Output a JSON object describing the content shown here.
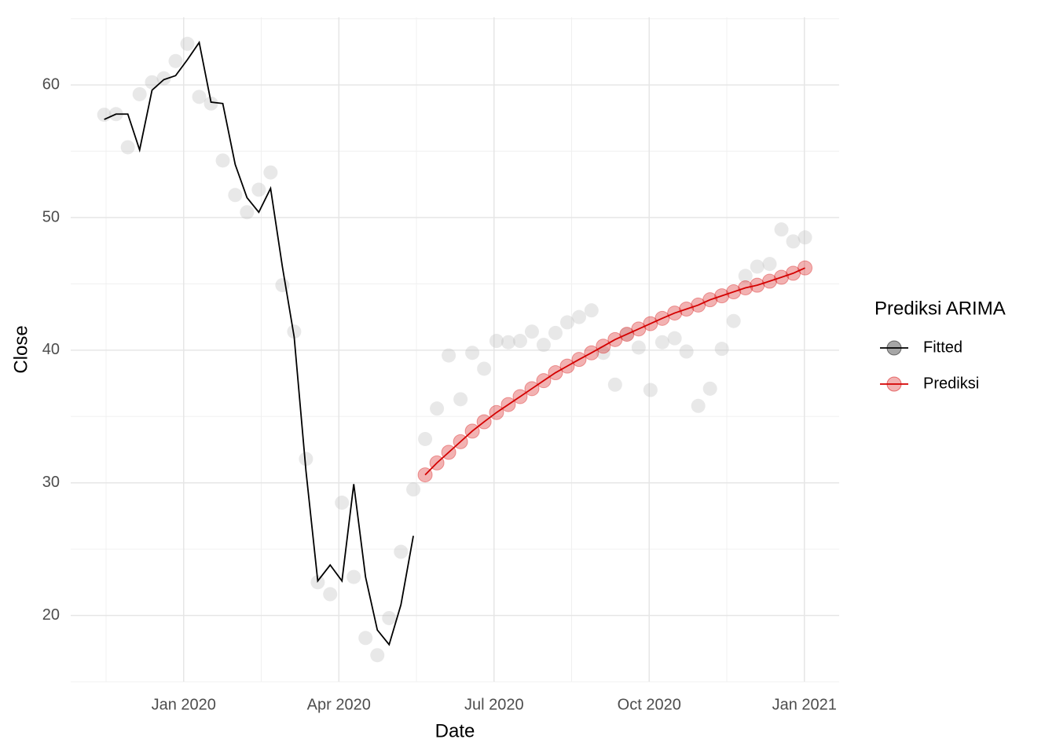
{
  "chart_data": {
    "type": "line",
    "x_label": "Date",
    "y_label": "Close",
    "legend_title": "Prediksi ARIMA",
    "x": [
      2019.872,
      2019.891,
      2019.91,
      2019.929,
      2019.949,
      2019.968,
      2019.987,
      2020.006,
      2020.025,
      2020.044,
      2020.063,
      2020.083,
      2020.102,
      2020.121,
      2020.14,
      2020.159,
      2020.178,
      2020.197,
      2020.216,
      2020.236,
      2020.255,
      2020.274,
      2020.293,
      2020.312,
      2020.331,
      2020.35,
      2020.37,
      2020.389,
      2020.408,
      2020.427,
      2020.446,
      2020.465,
      2020.484,
      2020.504,
      2020.523,
      2020.542,
      2020.561,
      2020.58,
      2020.599,
      2020.618,
      2020.637,
      2020.657,
      2020.676,
      2020.695,
      2020.714,
      2020.733,
      2020.752,
      2020.771,
      2020.791,
      2020.81,
      2020.829,
      2020.848,
      2020.867,
      2020.886,
      2020.905,
      2020.924,
      2020.944,
      2020.963,
      2020.982,
      2021.001
    ],
    "points_color": "#bdbdbd",
    "points_values": [
      57.75,
      57.8,
      55.3,
      59.3,
      60.2,
      60.5,
      61.8,
      63.1,
      59.1,
      58.6,
      54.3,
      51.7,
      50.4,
      52.1,
      53.4,
      44.9,
      41.4,
      31.8,
      22.5,
      21.6,
      28.5,
      22.9,
      18.3,
      17.0,
      19.8,
      24.8,
      29.5,
      33.3,
      35.6,
      39.6,
      36.3,
      39.8,
      38.6,
      40.7,
      40.6,
      40.7,
      41.4,
      40.4,
      41.3,
      42.1,
      42.5,
      43.0,
      39.8,
      37.4,
      41.2,
      40.2,
      37.0,
      40.6,
      40.9,
      39.9,
      35.8,
      37.1,
      40.1,
      42.2,
      45.6,
      46.3,
      46.5,
      49.1,
      48.2,
      48.5
    ],
    "series": [
      {
        "name": "Fitted",
        "color": "#000000",
        "markers": false,
        "values": [
          57.4,
          57.8,
          57.8,
          55.1,
          59.6,
          60.4,
          60.7,
          61.9,
          63.2,
          58.7,
          58.6,
          54.0,
          51.5,
          50.4,
          52.2,
          46.3,
          41.0,
          30.9,
          22.6,
          23.8,
          22.6,
          29.9,
          22.9,
          18.9,
          17.8,
          20.8,
          26.0,
          null,
          null,
          null,
          null,
          null,
          null,
          null,
          null,
          null,
          null,
          null,
          null,
          null,
          null,
          null,
          null,
          null,
          null,
          null,
          null,
          null,
          null,
          null,
          null,
          null,
          null,
          null,
          null,
          null,
          null,
          null,
          null,
          null
        ]
      },
      {
        "name": "Prediksi",
        "color": "#d40000",
        "markers": true,
        "values": [
          null,
          null,
          null,
          null,
          null,
          null,
          null,
          null,
          null,
          null,
          null,
          null,
          null,
          null,
          null,
          null,
          null,
          null,
          null,
          null,
          null,
          null,
          null,
          null,
          null,
          null,
          null,
          30.6,
          31.5,
          32.3,
          33.1,
          33.9,
          34.6,
          35.3,
          35.9,
          36.5,
          37.1,
          37.7,
          38.3,
          38.8,
          39.3,
          39.8,
          40.3,
          40.8,
          41.2,
          41.6,
          42.0,
          42.4,
          42.8,
          43.1,
          43.4,
          43.8,
          44.1,
          44.4,
          44.7,
          44.9,
          45.2,
          45.5,
          45.8,
          46.2
        ]
      }
    ],
    "xlim": [
      2019.818,
      2021.056
    ],
    "xticks": [
      {
        "value": 2020,
        "label": "Jan 2020"
      },
      {
        "value": 2020.25,
        "label": "Apr 2020"
      },
      {
        "value": 2020.5,
        "label": "Jul 2020"
      },
      {
        "value": 2020.75,
        "label": "Oct 2020"
      },
      {
        "value": 2021,
        "label": "Jan 2021"
      }
    ],
    "ylim": [
      15.0,
      65.1
    ],
    "yticks": [
      20,
      30,
      40,
      50,
      60
    ],
    "grid": true,
    "legend_position": "right"
  }
}
